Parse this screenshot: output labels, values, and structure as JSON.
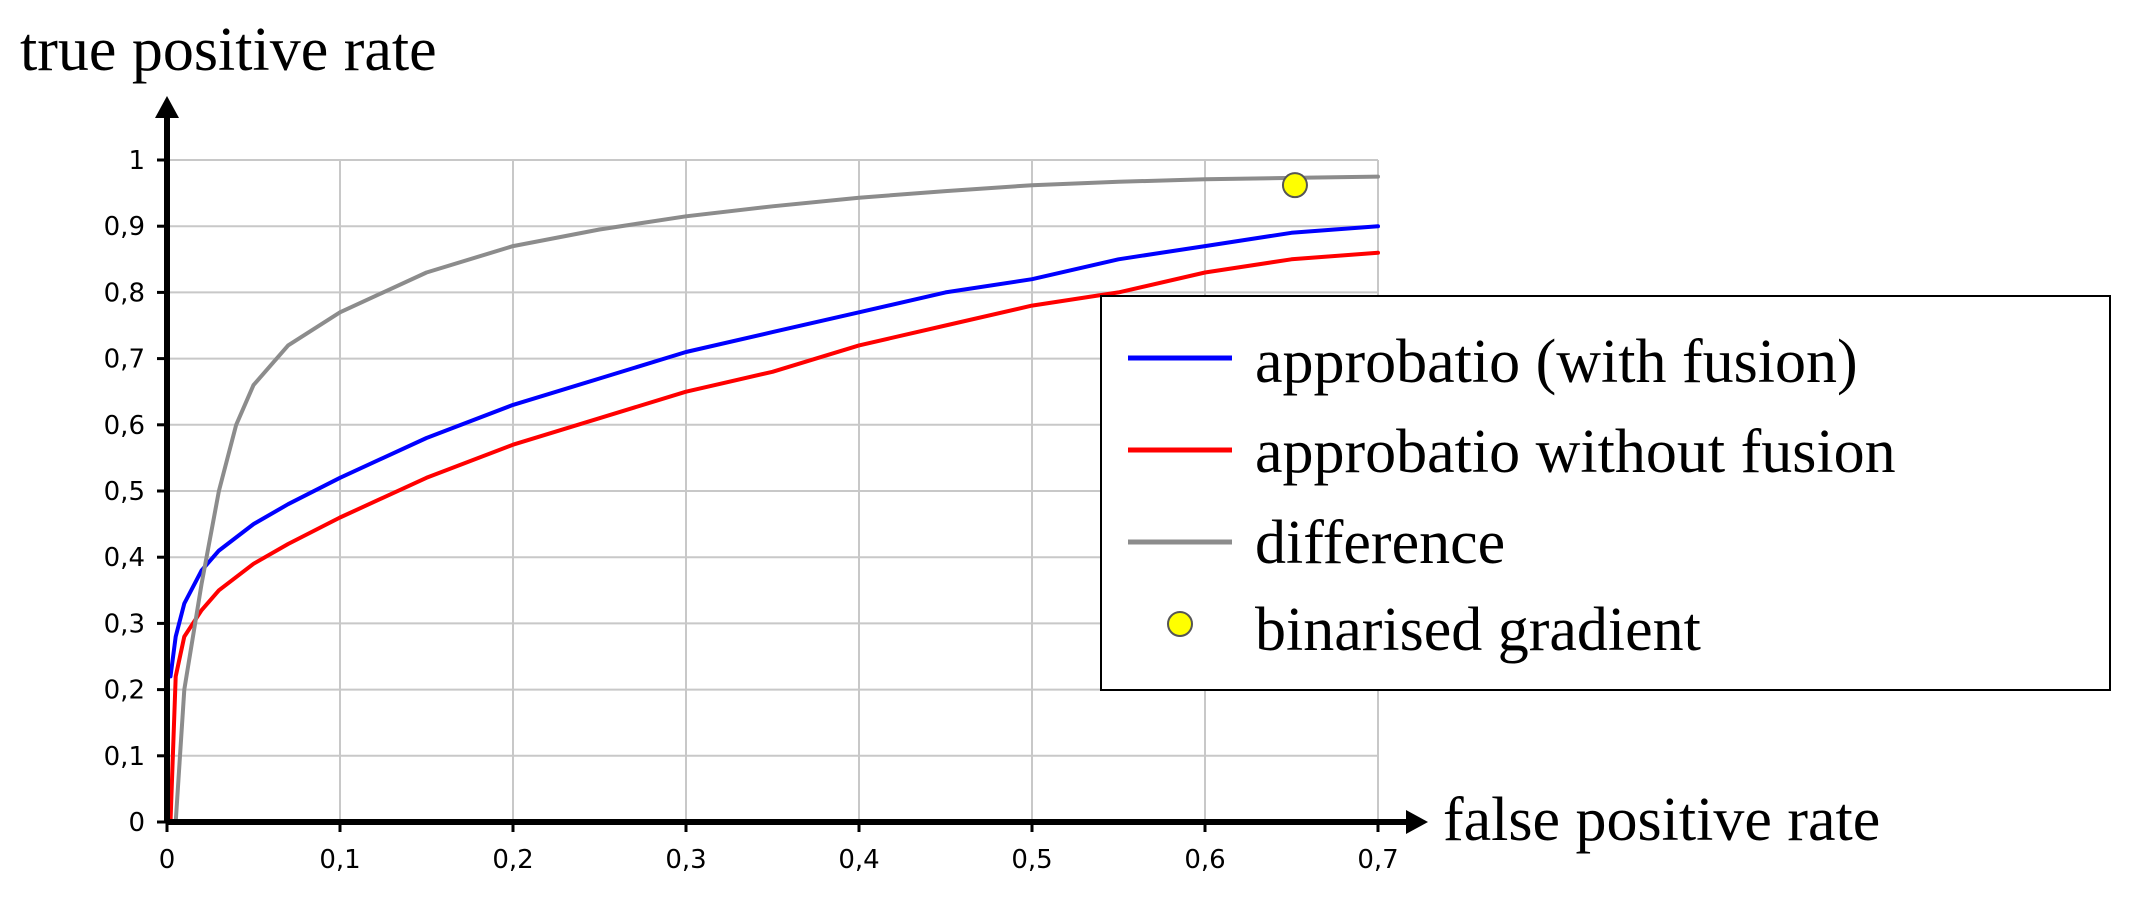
{
  "chart_data": {
    "type": "line",
    "xlabel": "false positive rate",
    "ylabel": "true positive rate",
    "xlim": [
      0,
      0.7
    ],
    "ylim": [
      0,
      1
    ],
    "x_ticks": [
      "0",
      "0,1",
      "0,2",
      "0,3",
      "0,4",
      "0,5",
      "0,6",
      "0,7"
    ],
    "y_ticks": [
      "0",
      "0,1",
      "0,2",
      "0,3",
      "0,4",
      "0,5",
      "0,6",
      "0,7",
      "0,8",
      "0,9",
      "1"
    ],
    "grid": true,
    "legend_position": "right",
    "series": [
      {
        "name": "approbatio (with fusion)",
        "color": "#0000ff",
        "x": [
          0.002,
          0.005,
          0.01,
          0.02,
          0.03,
          0.05,
          0.07,
          0.1,
          0.15,
          0.2,
          0.25,
          0.3,
          0.35,
          0.4,
          0.45,
          0.5,
          0.55,
          0.6,
          0.65,
          0.7
        ],
        "y": [
          0.22,
          0.28,
          0.33,
          0.38,
          0.41,
          0.45,
          0.48,
          0.52,
          0.58,
          0.63,
          0.67,
          0.71,
          0.74,
          0.77,
          0.8,
          0.82,
          0.85,
          0.87,
          0.89,
          0.9
        ]
      },
      {
        "name": "approbatio without fusion",
        "color": "#ff0000",
        "x": [
          0.002,
          0.005,
          0.01,
          0.02,
          0.03,
          0.05,
          0.07,
          0.1,
          0.15,
          0.2,
          0.25,
          0.3,
          0.35,
          0.4,
          0.45,
          0.5,
          0.55,
          0.6,
          0.65,
          0.7
        ],
        "y": [
          0.0,
          0.22,
          0.28,
          0.32,
          0.35,
          0.39,
          0.42,
          0.46,
          0.52,
          0.57,
          0.61,
          0.65,
          0.68,
          0.72,
          0.75,
          0.78,
          0.8,
          0.83,
          0.85,
          0.86
        ]
      },
      {
        "name": "difference",
        "color": "#8c8c8c",
        "x": [
          0.005,
          0.01,
          0.02,
          0.03,
          0.04,
          0.05,
          0.07,
          0.1,
          0.15,
          0.2,
          0.25,
          0.3,
          0.35,
          0.4,
          0.45,
          0.5,
          0.55,
          0.6,
          0.65,
          0.7
        ],
        "y": [
          0.0,
          0.2,
          0.36,
          0.5,
          0.6,
          0.66,
          0.72,
          0.77,
          0.83,
          0.87,
          0.895,
          0.915,
          0.93,
          0.943,
          0.953,
          0.962,
          0.967,
          0.971,
          0.973,
          0.975
        ]
      }
    ],
    "points": [
      {
        "name": "binarised gradient",
        "x": 0.652,
        "y": 0.962,
        "color": "#ffff00"
      }
    ]
  }
}
